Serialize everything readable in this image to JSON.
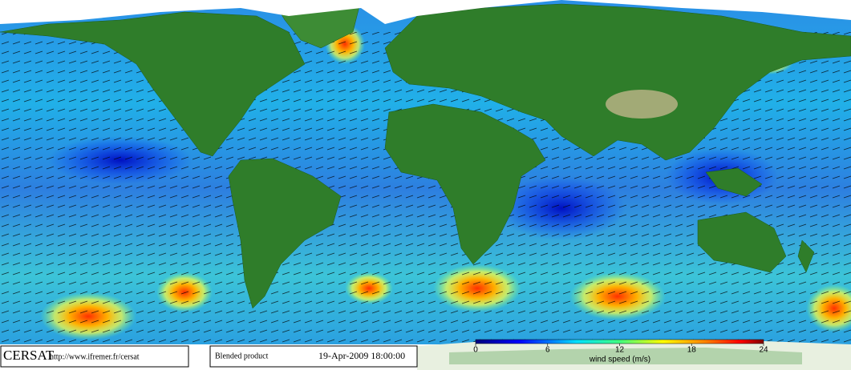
{
  "footer": {
    "logo": "CERSAT",
    "url": "http://www.ifremer.fr/cersat",
    "product": "Blended product",
    "timestamp": "19-Apr-2009 18:00:00"
  },
  "colorbar": {
    "label": "wind speed (m/s)",
    "lim": [
      0,
      24
    ],
    "ticks": [
      0,
      6,
      12,
      18,
      24
    ]
  }
}
